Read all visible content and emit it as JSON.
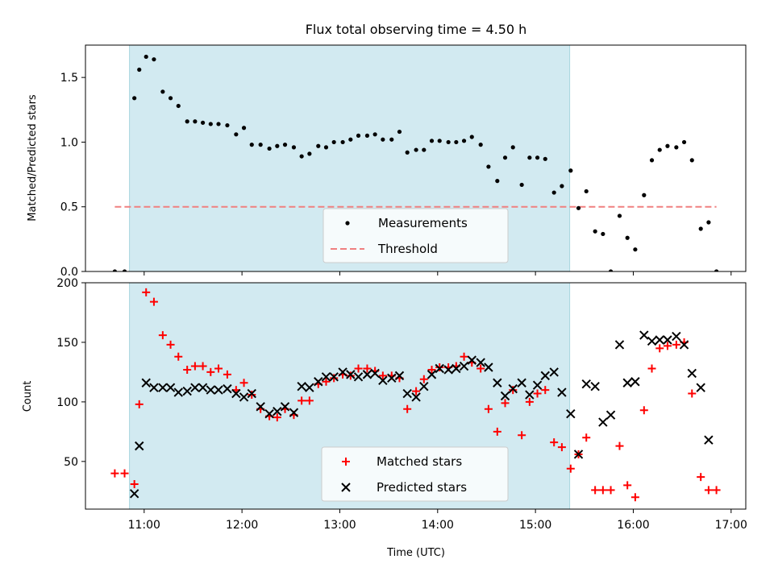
{
  "chart_data": [
    {
      "type": "scatter",
      "title": "Flux total observing time = 4.50 h",
      "ylabel": "Matched/Predicted stars",
      "xlabel": "",
      "xlim": [
        10.4,
        17.15
      ],
      "ylim": [
        0,
        1.75
      ],
      "yticks": [
        0,
        0.5,
        1.0,
        1.5
      ],
      "ytick_labels": [
        "0.0",
        "0.5",
        "1.0",
        "1.5"
      ],
      "xticks": [
        11,
        12,
        13,
        14,
        15,
        16,
        17
      ],
      "shaded_span": [
        10.85,
        15.35
      ],
      "colors": {
        "measurements": "#000000",
        "threshold": "#f08080",
        "shade": "#add8e6"
      },
      "legend": {
        "location": "lower-center",
        "entries": [
          "Measurements",
          "Threshold"
        ]
      },
      "threshold": {
        "name": "Threshold",
        "y": 0.5,
        "x_range": [
          10.7,
          16.85
        ]
      },
      "series": [
        {
          "name": "Measurements",
          "x": [
            10.7,
            10.8,
            10.9,
            10.95,
            11.02,
            11.1,
            11.19,
            11.27,
            11.35,
            11.44,
            11.52,
            11.6,
            11.68,
            11.76,
            11.85,
            11.94,
            12.02,
            12.1,
            12.19,
            12.28,
            12.36,
            12.44,
            12.53,
            12.61,
            12.69,
            12.78,
            12.86,
            12.94,
            13.03,
            13.11,
            13.19,
            13.28,
            13.36,
            13.44,
            13.53,
            13.61,
            13.69,
            13.78,
            13.86,
            13.94,
            14.02,
            14.11,
            14.19,
            14.27,
            14.35,
            14.44,
            14.52,
            14.61,
            14.69,
            14.77,
            14.86,
            14.94,
            15.02,
            15.1,
            15.19,
            15.27,
            15.36,
            15.44,
            15.52,
            15.61,
            15.69,
            15.77,
            15.86,
            15.94,
            16.02,
            16.11,
            16.19,
            16.27,
            16.35,
            16.44,
            16.52,
            16.6,
            16.69,
            16.77,
            16.85
          ],
          "y": [
            0.0,
            0.0,
            1.34,
            1.56,
            1.66,
            1.64,
            1.39,
            1.34,
            1.28,
            1.16,
            1.16,
            1.15,
            1.14,
            1.14,
            1.13,
            1.06,
            1.11,
            0.98,
            0.98,
            0.95,
            0.97,
            0.98,
            0.96,
            0.89,
            0.91,
            0.97,
            0.96,
            1.0,
            1.0,
            1.02,
            1.05,
            1.05,
            1.06,
            1.02,
            1.02,
            1.08,
            0.92,
            0.94,
            0.94,
            1.01,
            1.01,
            1.0,
            1.0,
            1.01,
            1.04,
            0.98,
            0.81,
            0.7,
            0.88,
            0.96,
            0.67,
            0.88,
            0.88,
            0.87,
            0.61,
            0.66,
            0.78,
            0.49,
            0.62,
            0.31,
            0.29,
            0.0,
            0.43,
            0.26,
            0.17,
            0.59,
            0.86,
            0.94,
            0.97,
            0.96,
            1.0,
            0.86,
            0.33,
            0.38,
            0.0
          ]
        }
      ]
    },
    {
      "type": "scatter",
      "title": "",
      "ylabel": "Count",
      "xlabel": "Time (UTC)",
      "xlim": [
        10.4,
        17.15
      ],
      "ylim": [
        10,
        200
      ],
      "yticks": [
        50,
        100,
        150,
        200
      ],
      "ytick_labels": [
        "50",
        "100",
        "150",
        "200"
      ],
      "xticks": [
        11,
        12,
        13,
        14,
        15,
        16,
        17
      ],
      "xtick_labels": [
        "11:00",
        "12:00",
        "13:00",
        "14:00",
        "15:00",
        "16:00",
        "17:00"
      ],
      "shaded_span": [
        10.85,
        15.35
      ],
      "colors": {
        "matched": "#ff0000",
        "predicted": "#000000",
        "shade": "#add8e6"
      },
      "legend": {
        "location": "lower-center",
        "entries": [
          "Matched stars",
          "Predicted stars"
        ]
      },
      "series": [
        {
          "name": "Matched stars",
          "marker": "plus",
          "x": [
            10.7,
            10.8,
            10.9,
            10.95,
            11.02,
            11.1,
            11.19,
            11.27,
            11.35,
            11.44,
            11.52,
            11.6,
            11.68,
            11.76,
            11.85,
            11.94,
            12.02,
            12.1,
            12.19,
            12.28,
            12.36,
            12.44,
            12.53,
            12.61,
            12.69,
            12.78,
            12.86,
            12.94,
            13.03,
            13.11,
            13.19,
            13.28,
            13.36,
            13.44,
            13.53,
            13.61,
            13.69,
            13.78,
            13.86,
            13.94,
            14.02,
            14.11,
            14.19,
            14.27,
            14.35,
            14.44,
            14.52,
            14.61,
            14.69,
            14.77,
            14.86,
            14.94,
            15.02,
            15.1,
            15.19,
            15.27,
            15.36,
            15.44,
            15.52,
            15.61,
            15.69,
            15.77,
            15.86,
            15.94,
            16.02,
            16.11,
            16.19,
            16.27,
            16.35,
            16.44,
            16.52,
            16.6,
            16.69,
            16.77,
            16.85
          ],
          "y": [
            40,
            40,
            31,
            98,
            192,
            184,
            156,
            148,
            138,
            127,
            130,
            130,
            125,
            128,
            123,
            110,
            116,
            106,
            94,
            88,
            87,
            94,
            89,
            101,
            101,
            115,
            117,
            120,
            123,
            122,
            128,
            128,
            126,
            122,
            122,
            120,
            94,
            109,
            119,
            127,
            129,
            129,
            130,
            138,
            133,
            128,
            94,
            75,
            99,
            110,
            72,
            100,
            107,
            110,
            66,
            62,
            44,
            56,
            70,
            26,
            26,
            26,
            63,
            30,
            20,
            93,
            128,
            145,
            147,
            148,
            150,
            107,
            37,
            26,
            26
          ]
        },
        {
          "name": "Predicted stars",
          "marker": "x",
          "x": [
            10.9,
            10.95,
            11.02,
            11.1,
            11.19,
            11.27,
            11.35,
            11.44,
            11.52,
            11.6,
            11.68,
            11.76,
            11.85,
            11.94,
            12.02,
            12.1,
            12.19,
            12.28,
            12.36,
            12.44,
            12.53,
            12.61,
            12.69,
            12.78,
            12.86,
            12.94,
            13.03,
            13.11,
            13.19,
            13.28,
            13.36,
            13.44,
            13.53,
            13.61,
            13.69,
            13.78,
            13.86,
            13.94,
            14.02,
            14.11,
            14.19,
            14.27,
            14.35,
            14.44,
            14.52,
            14.61,
            14.69,
            14.77,
            14.86,
            14.94,
            15.02,
            15.1,
            15.19,
            15.27,
            15.36,
            15.44,
            15.52,
            15.61,
            15.69,
            15.77,
            15.86,
            15.94,
            16.02,
            16.11,
            16.19,
            16.27,
            16.35,
            16.44,
            16.52,
            16.6,
            16.69,
            16.77
          ],
          "y": [
            23,
            63,
            116,
            112,
            112,
            112,
            108,
            109,
            112,
            112,
            110,
            110,
            111,
            107,
            104,
            107,
            96,
            90,
            92,
            96,
            91,
            113,
            112,
            117,
            121,
            121,
            125,
            123,
            121,
            123,
            124,
            118,
            120,
            122,
            107,
            104,
            113,
            123,
            128,
            127,
            128,
            130,
            135,
            133,
            129,
            116,
            105,
            111,
            116,
            106,
            114,
            122,
            125,
            108,
            90,
            56,
            115,
            113,
            83,
            89,
            148,
            116,
            117,
            156,
            151,
            152,
            152,
            155,
            148,
            124,
            112,
            68
          ]
        }
      ]
    }
  ]
}
